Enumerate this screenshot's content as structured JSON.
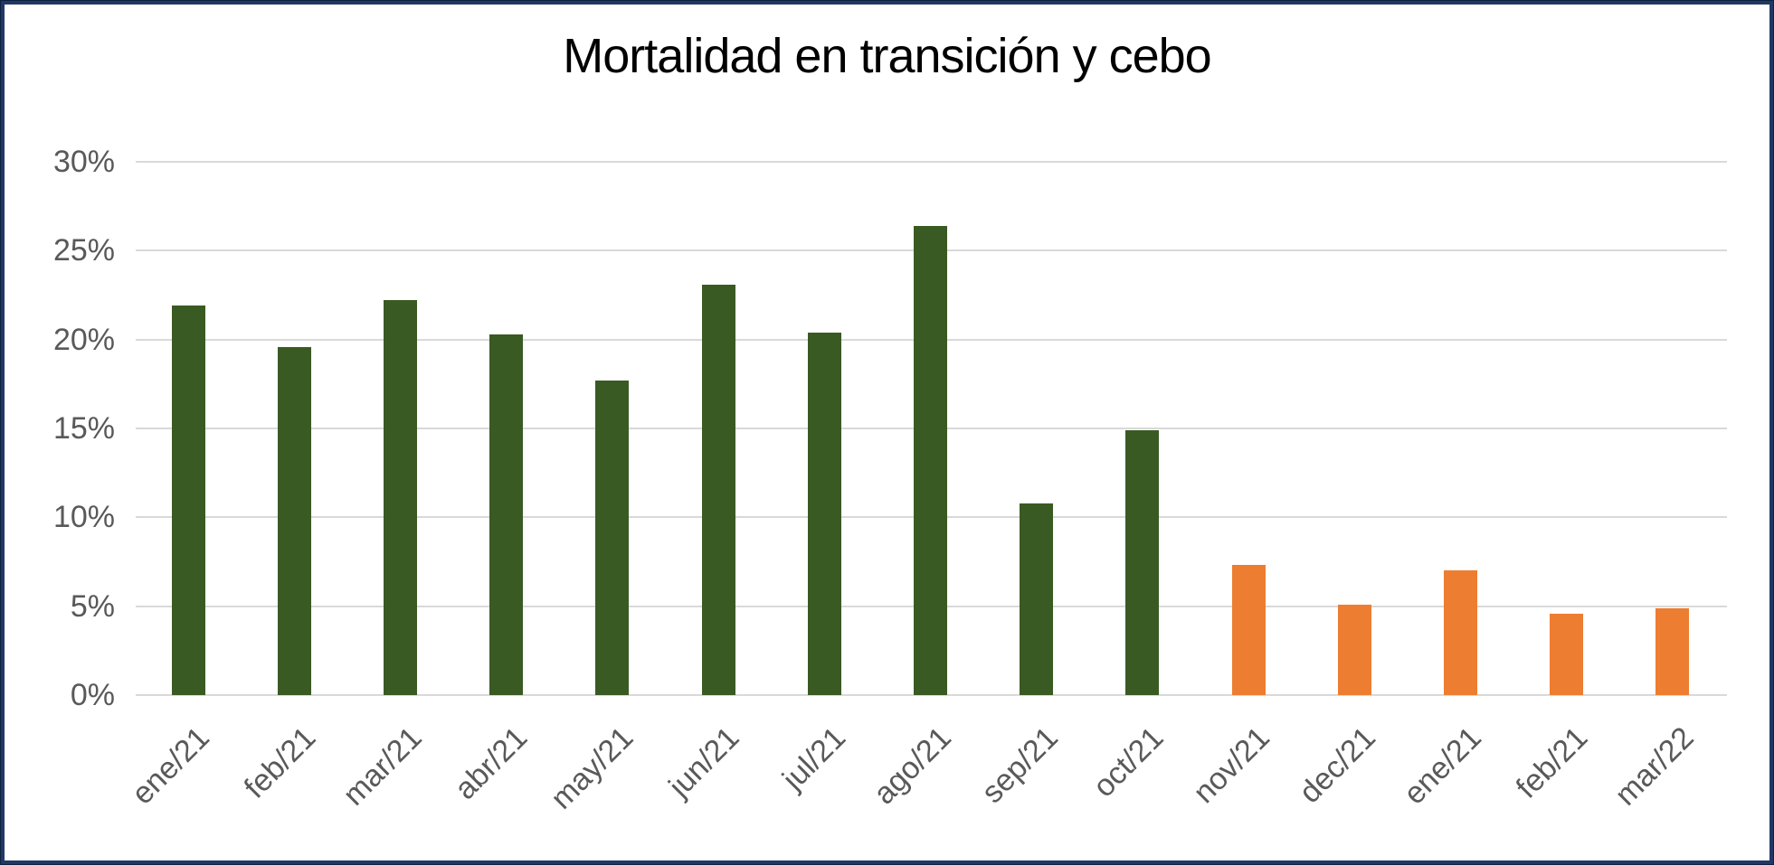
{
  "chart_data": {
    "type": "bar",
    "title": "Mortalidad en transición y cebo",
    "categories": [
      "ene/21",
      "feb/21",
      "mar/21",
      "abr/21",
      "may/21",
      "jun/21",
      "jul/21",
      "ago/21",
      "sep/21",
      "oct/21",
      "nov/21",
      "dec/21",
      "ene/21",
      "feb/21",
      "mar/22"
    ],
    "values": [
      21.9,
      19.6,
      22.2,
      20.3,
      17.7,
      23.1,
      20.4,
      26.4,
      10.8,
      14.9,
      7.3,
      5.1,
      7.0,
      4.6,
      4.9
    ],
    "unit": "%",
    "bar_color_keys": [
      "green",
      "green",
      "green",
      "green",
      "green",
      "green",
      "green",
      "green",
      "green",
      "green",
      "orange",
      "orange",
      "orange",
      "orange",
      "orange"
    ],
    "y_ticks": [
      "30%",
      "25%",
      "20%",
      "15%",
      "10%",
      "5%",
      "0%"
    ],
    "ylim": [
      0,
      30
    ],
    "y_step": 5,
    "grid": true,
    "legend": false,
    "xlabel": "",
    "ylabel": ""
  },
  "colors": {
    "green": "#3a5a23",
    "orange": "#ed7d31",
    "gridline": "#d9d9d9",
    "axis_text": "#595959",
    "title_text": "#000000",
    "frame_border": "#1f3864"
  }
}
